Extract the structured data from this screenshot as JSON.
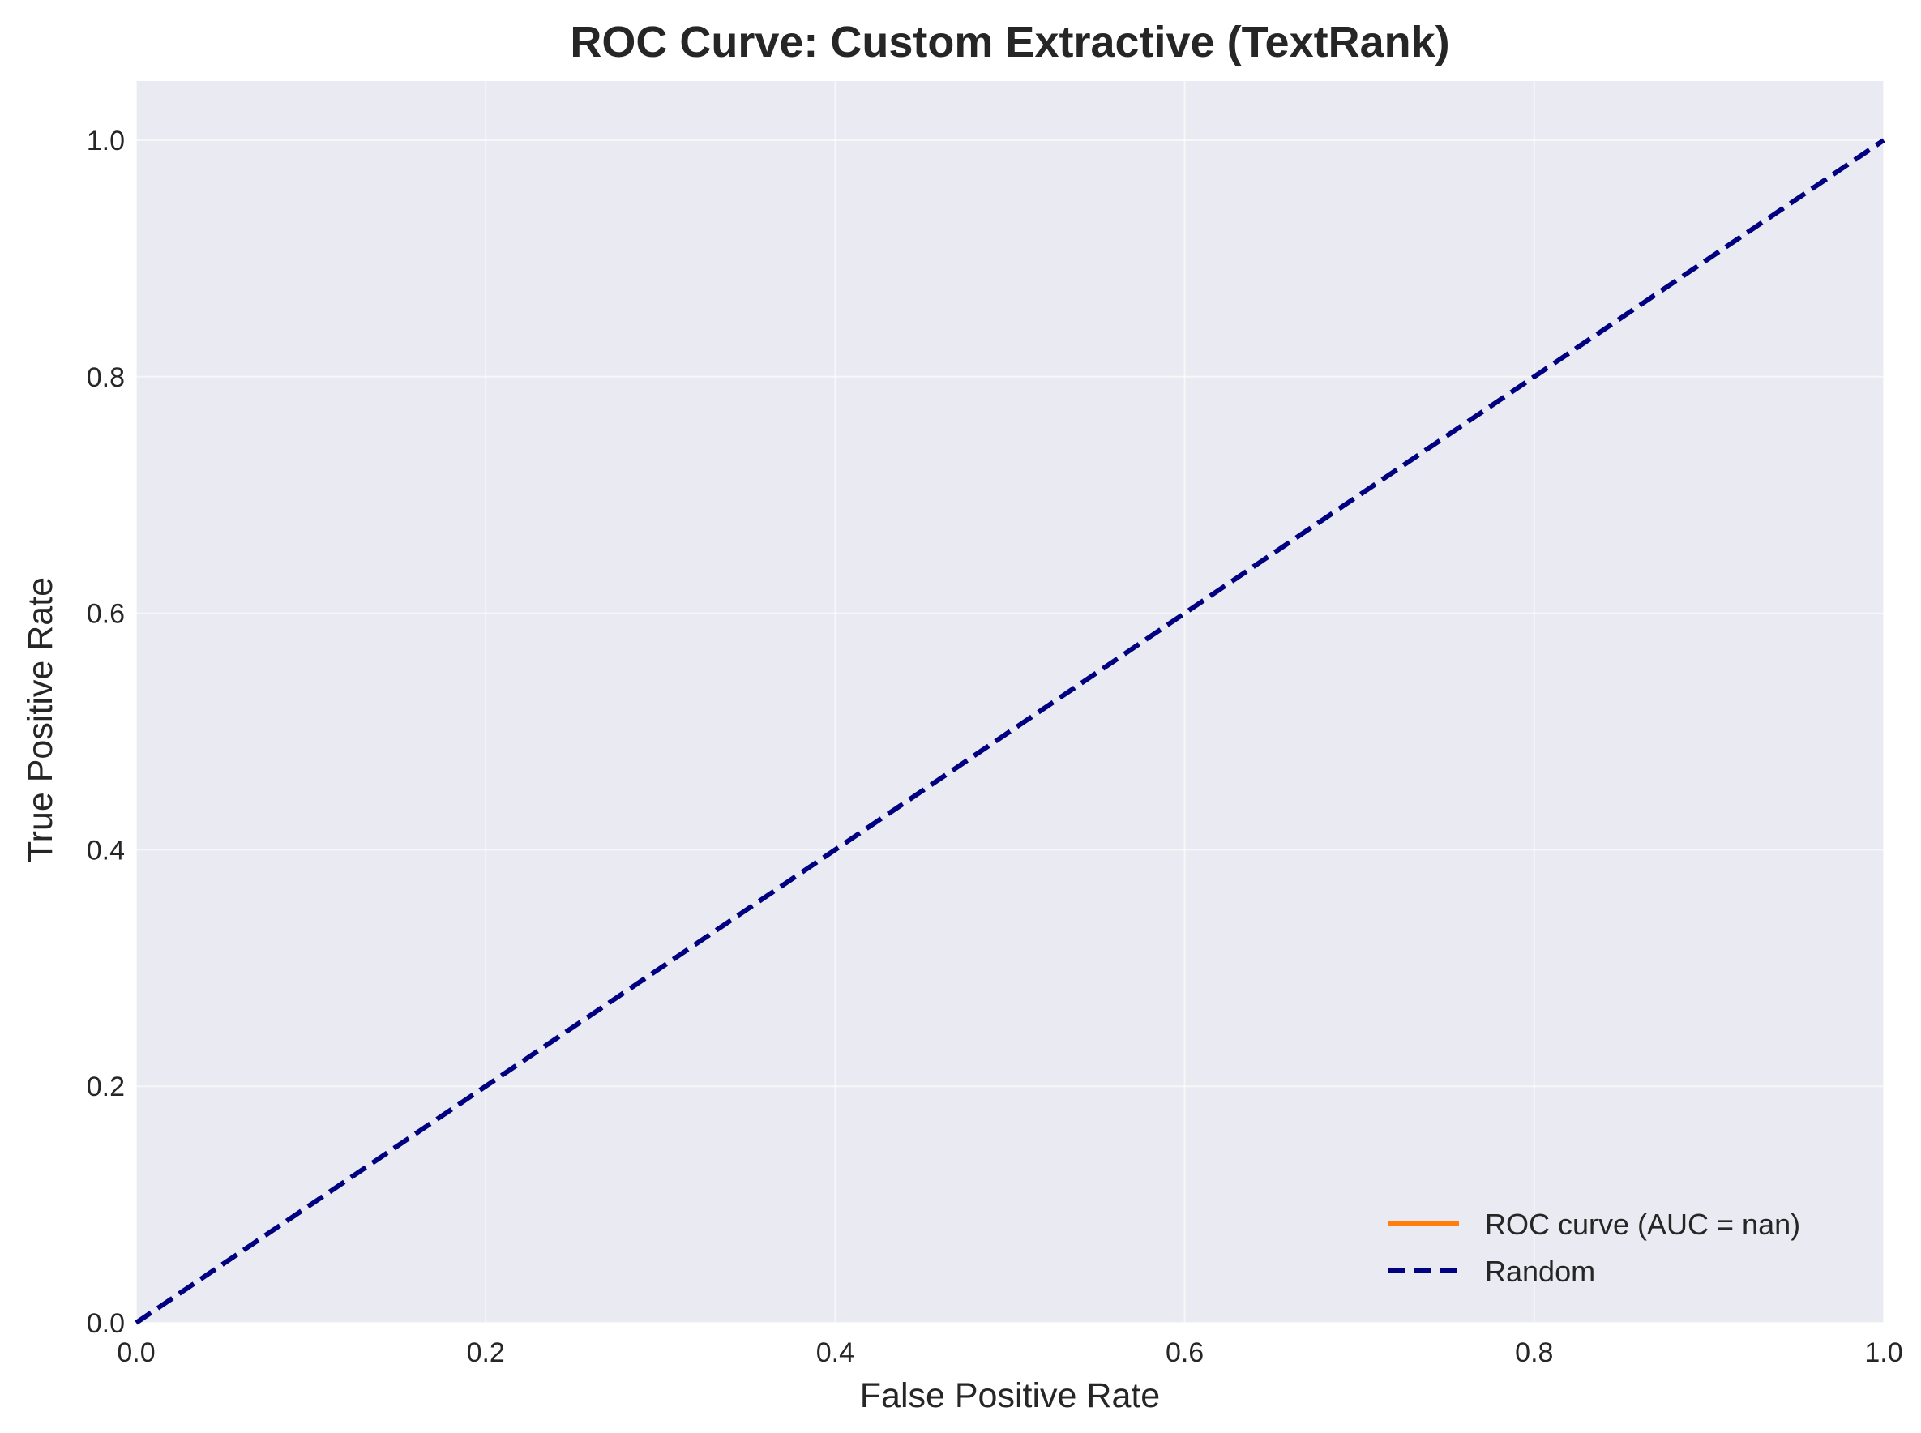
{
  "chart_data": {
    "type": "line",
    "title": "ROC Curve: Custom Extractive (TextRank)",
    "xlabel": "False Positive Rate",
    "ylabel": "True Positive Rate",
    "xlim": [
      0.0,
      1.0
    ],
    "ylim": [
      0.0,
      1.05
    ],
    "xticks": [
      0.0,
      0.2,
      0.4,
      0.6,
      0.8,
      1.0
    ],
    "xtick_labels": [
      "0.0",
      "0.2",
      "0.4",
      "0.6",
      "0.8",
      "1.0"
    ],
    "yticks": [
      0.0,
      0.2,
      0.4,
      0.6,
      0.8,
      1.0
    ],
    "ytick_labels": [
      "0.0",
      "0.2",
      "0.4",
      "0.6",
      "0.8",
      "1.0"
    ],
    "grid": true,
    "legend_position": "bottom-right",
    "plot_background": "#eaeaf2",
    "series": [
      {
        "name": "ROC curve (AUC = nan)",
        "color": "#ff7f0e",
        "style": "solid",
        "x": [],
        "y": []
      },
      {
        "name": "Random",
        "color": "#000080",
        "style": "dashed",
        "x": [
          0.0,
          1.0
        ],
        "y": [
          0.0,
          1.0
        ]
      }
    ]
  }
}
